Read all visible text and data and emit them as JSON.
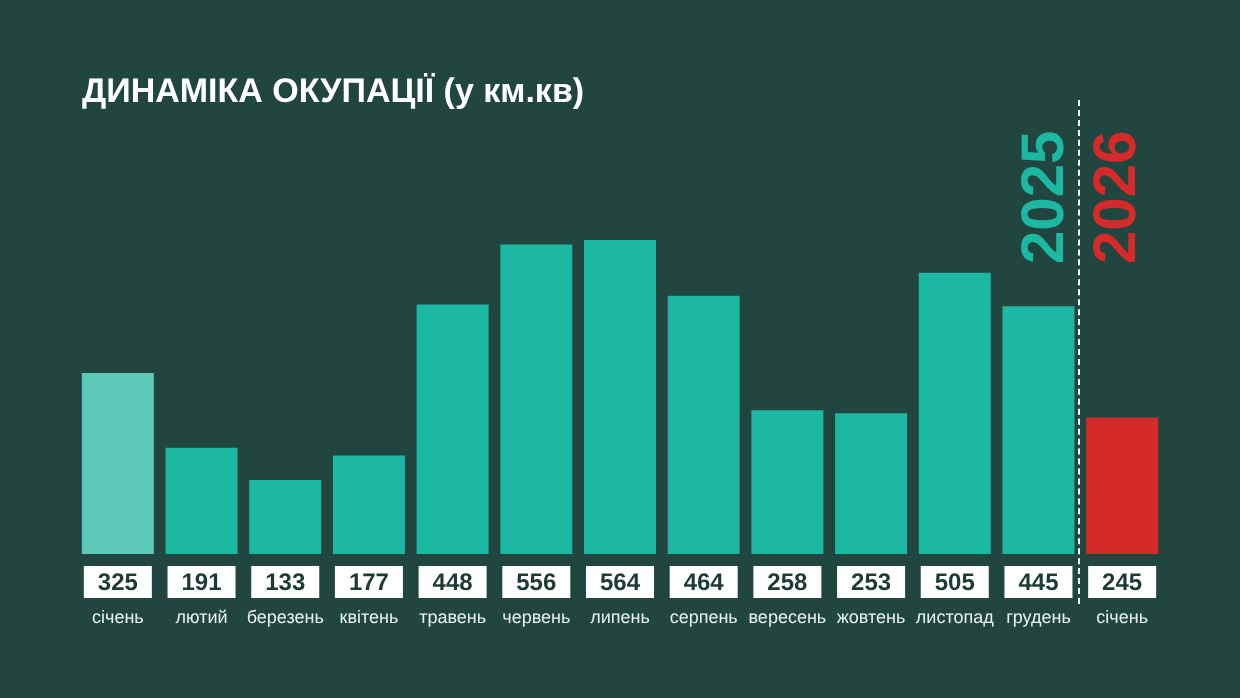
{
  "chart_data": {
    "type": "bar",
    "title": "ДИНАМІКА ОКУПАЦІЇ (у км.кв)",
    "categories": [
      "січень",
      "лютий",
      "березень",
      "квітень",
      "травень",
      "червень",
      "липень",
      "серпень",
      "вересень",
      "жовтень",
      "листопад",
      "грудень",
      "січень"
    ],
    "values": [
      325,
      191,
      133,
      177,
      448,
      556,
      564,
      464,
      258,
      253,
      505,
      445,
      245
    ],
    "colors": [
      "#5cc9b8",
      "#1db8a2",
      "#1db8a2",
      "#1db8a2",
      "#1db8a2",
      "#1db8a2",
      "#1db8a2",
      "#1db8a2",
      "#1db8a2",
      "#1db8a2",
      "#1db8a2",
      "#1db8a2",
      "#d42a2a"
    ],
    "data_labels": true,
    "annotations": [
      "2025",
      "2026"
    ]
  }
}
